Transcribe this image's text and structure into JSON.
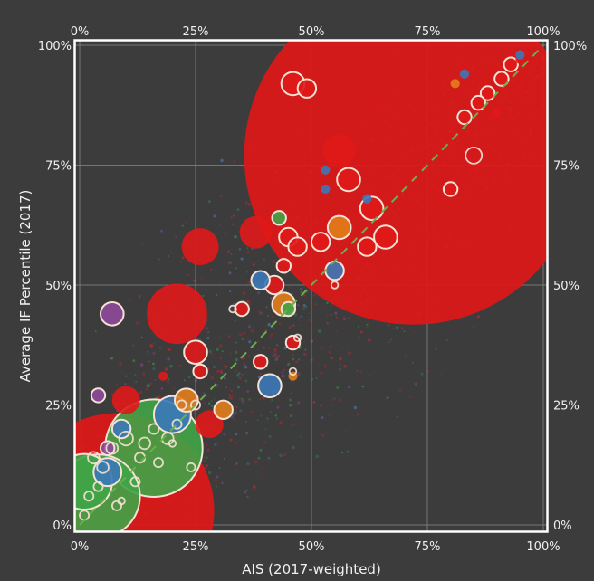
{
  "chart_data": {
    "type": "scatter",
    "subtype": "bubble",
    "title": "",
    "xlabel": "AIS (2017-weighted)",
    "ylabel": "Average IF Percentile (2017)",
    "xlim": [
      0,
      100
    ],
    "ylim": [
      0,
      100
    ],
    "x_ticks": [
      "0%",
      "25%",
      "50%",
      "75%",
      "100%"
    ],
    "y_ticks": [
      "0%",
      "25%",
      "50%",
      "75%",
      "100%"
    ],
    "x_tick_values": [
      0,
      25,
      50,
      75,
      100
    ],
    "y_tick_values": [
      0,
      25,
      50,
      75,
      100
    ],
    "grid": true,
    "reference_line": {
      "type": "diagonal",
      "from": [
        0,
        0
      ],
      "to": [
        100,
        100
      ],
      "style": "dashed",
      "color": "#6ab04c"
    },
    "colors": {
      "red": "#e01818",
      "green": "#3fa447",
      "blue": "#3b78b8",
      "orange": "#e27d1a",
      "purple": "#8e4a9a",
      "background": "#3d3c3d",
      "frame": "#ffffff",
      "gridline": "#8a8a8a",
      "outline": "#f4e2d4"
    },
    "series": [
      {
        "name": "red",
        "color": "#e01818",
        "points": [
          {
            "x": 72,
            "y": 77,
            "size": 73
          },
          {
            "x": 8,
            "y": 3,
            "size": 42
          },
          {
            "x": 21,
            "y": 44,
            "size": 13
          },
          {
            "x": 26,
            "y": 58,
            "size": 8
          },
          {
            "x": 38,
            "y": 61,
            "size": 7
          },
          {
            "x": 46,
            "y": 92,
            "size": 5
          },
          {
            "x": 49,
            "y": 91,
            "size": 4
          },
          {
            "x": 56,
            "y": 78,
            "size": 7
          },
          {
            "x": 58,
            "y": 72,
            "size": 5
          },
          {
            "x": 52,
            "y": 59,
            "size": 4
          },
          {
            "x": 63,
            "y": 66,
            "size": 5
          },
          {
            "x": 66,
            "y": 60,
            "size": 5
          },
          {
            "x": 62,
            "y": 58,
            "size": 4
          },
          {
            "x": 45,
            "y": 60,
            "size": 4
          },
          {
            "x": 47,
            "y": 58,
            "size": 4
          },
          {
            "x": 44,
            "y": 54,
            "size": 3
          },
          {
            "x": 42,
            "y": 50,
            "size": 4
          },
          {
            "x": 25,
            "y": 36,
            "size": 5
          },
          {
            "x": 10,
            "y": 26,
            "size": 6
          },
          {
            "x": 28,
            "y": 21,
            "size": 6
          },
          {
            "x": 26,
            "y": 32,
            "size": 3
          },
          {
            "x": 39,
            "y": 34,
            "size": 3
          },
          {
            "x": 46,
            "y": 38,
            "size": 3
          },
          {
            "x": 88,
            "y": 90,
            "size": 3
          },
          {
            "x": 91,
            "y": 93,
            "size": 3
          },
          {
            "x": 93,
            "y": 96,
            "size": 3
          },
          {
            "x": 86,
            "y": 88,
            "size": 3
          },
          {
            "x": 95,
            "y": 97,
            "size": 2
          },
          {
            "x": 83,
            "y": 85,
            "size": 3
          },
          {
            "x": 90,
            "y": 86,
            "size": 2
          },
          {
            "x": 80,
            "y": 70,
            "size": 3
          },
          {
            "x": 18,
            "y": 31,
            "size": 2
          },
          {
            "x": 35,
            "y": 45,
            "size": 3
          }
        ]
      },
      {
        "name": "green",
        "color": "#3fa447",
        "points": [
          {
            "x": 16,
            "y": 16,
            "size": 21
          },
          {
            "x": 4,
            "y": 6,
            "size": 18
          },
          {
            "x": 1,
            "y": 9,
            "size": 12
          },
          {
            "x": 43,
            "y": 64,
            "size": 3
          },
          {
            "x": 45,
            "y": 45,
            "size": 3
          }
        ]
      },
      {
        "name": "blue",
        "color": "#3b78b8",
        "points": [
          {
            "x": 20,
            "y": 23,
            "size": 8
          },
          {
            "x": 41,
            "y": 29,
            "size": 5
          },
          {
            "x": 55,
            "y": 53,
            "size": 4
          },
          {
            "x": 39,
            "y": 51,
            "size": 4
          },
          {
            "x": 6,
            "y": 11,
            "size": 6
          },
          {
            "x": 9,
            "y": 20,
            "size": 4
          },
          {
            "x": 53,
            "y": 74,
            "size": 2
          },
          {
            "x": 83,
            "y": 94,
            "size": 2
          },
          {
            "x": 53,
            "y": 70,
            "size": 2
          },
          {
            "x": 62,
            "y": 68,
            "size": 2
          },
          {
            "x": 95,
            "y": 98,
            "size": 2
          }
        ]
      },
      {
        "name": "orange",
        "color": "#e27d1a",
        "points": [
          {
            "x": 56,
            "y": 62,
            "size": 5
          },
          {
            "x": 44,
            "y": 46,
            "size": 5
          },
          {
            "x": 23,
            "y": 26,
            "size": 5
          },
          {
            "x": 31,
            "y": 24,
            "size": 4
          },
          {
            "x": 81,
            "y": 92,
            "size": 2
          },
          {
            "x": 46,
            "y": 31,
            "size": 2
          }
        ]
      },
      {
        "name": "purple",
        "color": "#8e4a9a",
        "points": [
          {
            "x": 7,
            "y": 44,
            "size": 5
          },
          {
            "x": 4,
            "y": 27,
            "size": 3
          },
          {
            "x": 6,
            "y": 16,
            "size": 3
          }
        ]
      }
    ]
  }
}
